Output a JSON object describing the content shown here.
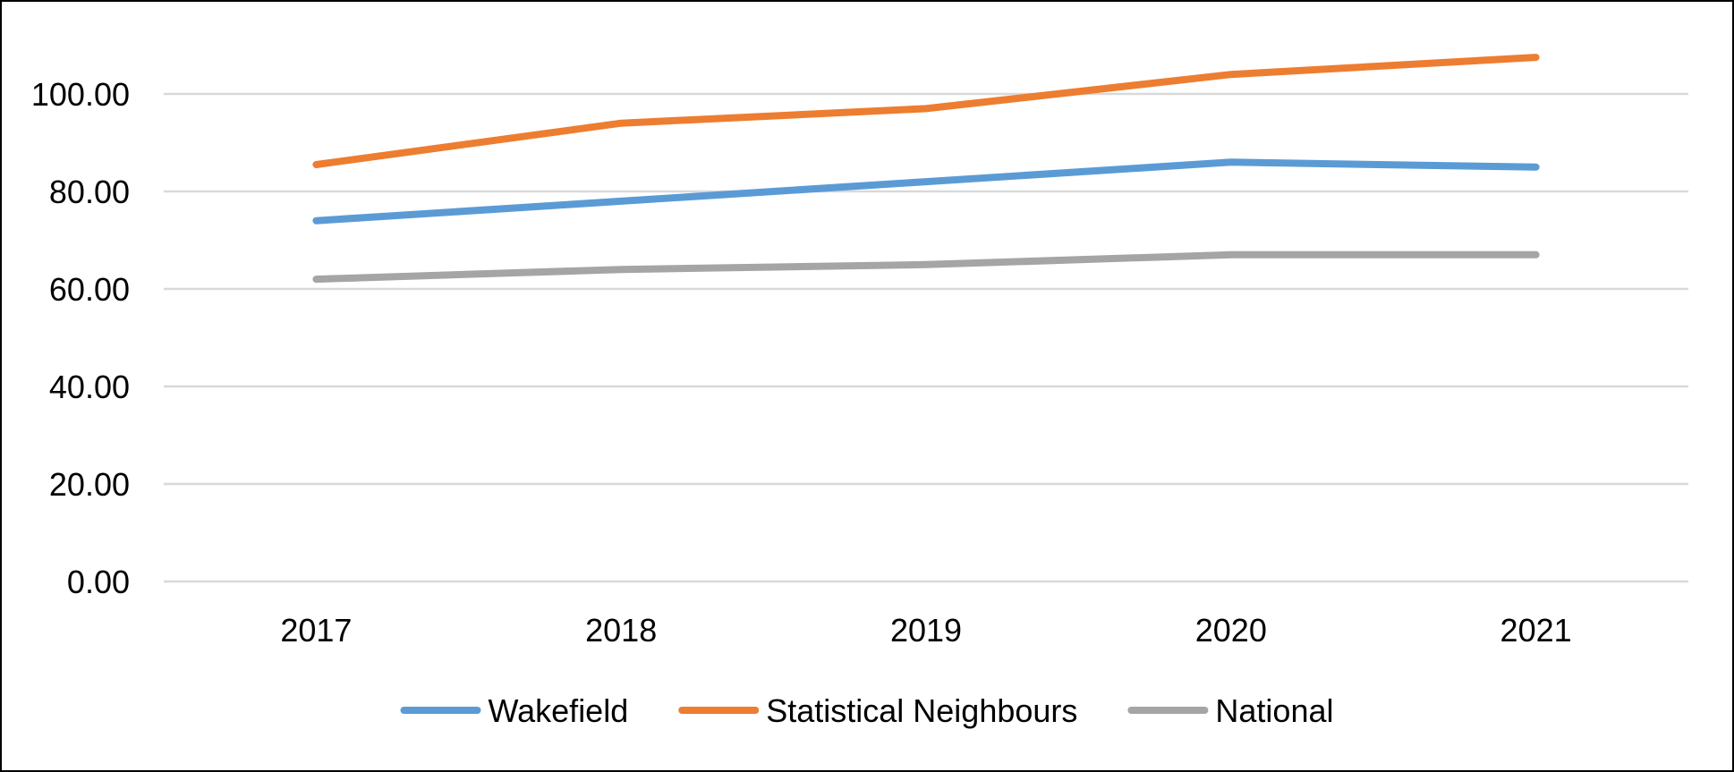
{
  "chart_data": {
    "type": "line",
    "categories": [
      "2017",
      "2018",
      "2019",
      "2020",
      "2021"
    ],
    "series": [
      {
        "name": "Wakefield",
        "values": [
          74,
          78,
          82,
          86,
          85
        ],
        "color": "#5b9bd5"
      },
      {
        "name": "Statistical Neighbours",
        "values": [
          85.5,
          94,
          97,
          104,
          107.5
        ],
        "color": "#ed7d31"
      },
      {
        "name": "National",
        "values": [
          62,
          64,
          65,
          67,
          67
        ],
        "color": "#a5a5a5"
      }
    ],
    "ylim": [
      0,
      120
    ],
    "yticks": [
      0,
      20,
      40,
      60,
      80,
      100
    ],
    "ytick_labels": [
      "0.00",
      "20.00",
      "40.00",
      "60.00",
      "80.00",
      "100.00"
    ],
    "grid": true,
    "legend_position": "bottom",
    "gridline_color": "#d9d9d9"
  }
}
